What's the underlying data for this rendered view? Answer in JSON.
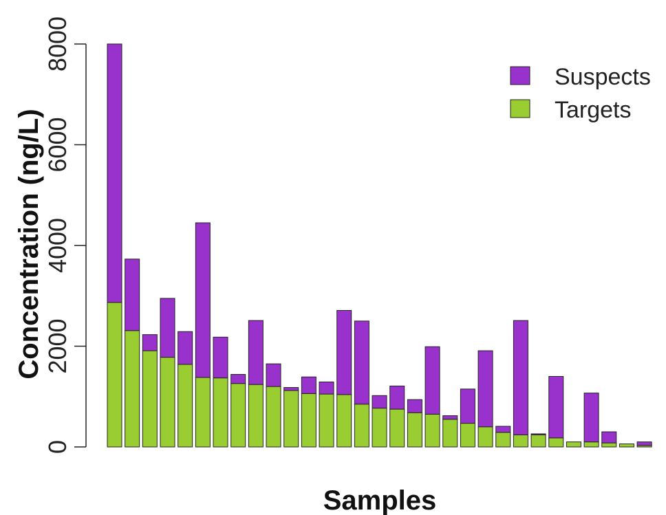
{
  "chart_data": {
    "type": "bar",
    "stacked": true,
    "title": "",
    "xlabel": "Samples",
    "ylabel": "Concentration (ng/L)",
    "ylim": [
      0,
      8000
    ],
    "yticks": [
      0,
      2000,
      4000,
      6000,
      8000
    ],
    "grid": false,
    "legend_position": "top-right",
    "series": [
      {
        "name": "Targets",
        "color": "#9acd32",
        "values": [
          2870,
          2310,
          1910,
          1780,
          1640,
          1380,
          1370,
          1260,
          1240,
          1200,
          1120,
          1060,
          1050,
          1040,
          850,
          770,
          750,
          680,
          650,
          550,
          470,
          400,
          290,
          240,
          240,
          180,
          100,
          100,
          80,
          60,
          30
        ]
      },
      {
        "name": "Suspects",
        "color": "#9932cc",
        "values": [
          5130,
          1420,
          320,
          1170,
          650,
          3070,
          810,
          180,
          1270,
          450,
          60,
          330,
          240,
          1670,
          1650,
          250,
          460,
          260,
          1340,
          70,
          680,
          1510,
          120,
          2270,
          20,
          1220,
          0,
          970,
          220,
          0,
          70
        ]
      }
    ]
  }
}
